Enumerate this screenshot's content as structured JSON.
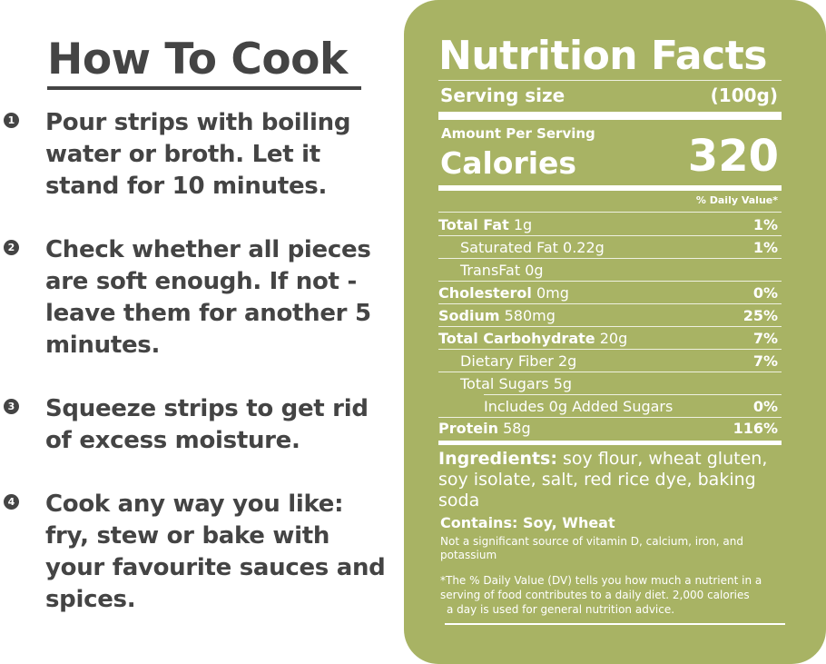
{
  "how_to_cook": {
    "title": "How To Cook",
    "steps": [
      {
        "number": "1",
        "text": "Pour strips with boiling water or broth. Let it stand for 10 minutes."
      },
      {
        "number": "2",
        "text": "Check whether all pieces are soft enough. If not - leave them for another 5 minutes."
      },
      {
        "number": "3",
        "text": "Squeeze strips to get rid of excess moisture."
      },
      {
        "number": "4",
        "text": "Cook any way you like: fry, stew or bake with your favourite sauces and spices."
      }
    ]
  },
  "nutrition": {
    "title": "Nutrition Facts",
    "serving_label": "Serving size",
    "serving_value": "(100g)",
    "amount_per_serving": "Amount Per Serving",
    "calories_label": "Calories",
    "calories_value": "320",
    "daily_value_header": "% Daily Value*",
    "rows": [
      {
        "name": "Total Fat",
        "amount": "1g",
        "dv": "1%"
      },
      {
        "name": "Saturated Fat",
        "amount": "0.22g",
        "dv": "1%"
      },
      {
        "name": "TransFat",
        "amount": "0g",
        "dv": ""
      },
      {
        "name": "Cholesterol",
        "amount": "0mg",
        "dv": "0%"
      },
      {
        "name": "Sodium",
        "amount": "580mg",
        "dv": "25%"
      },
      {
        "name": "Total Carbohydrate",
        "amount": "20g",
        "dv": "7%"
      },
      {
        "name": "Dietary Fiber",
        "amount": "2g",
        "dv": "7%"
      },
      {
        "name": "Total Sugars",
        "amount": "5g",
        "dv": ""
      },
      {
        "name": "Includes",
        "amount": "0g Added Sugars",
        "dv": "0%"
      },
      {
        "name": "Protein",
        "amount": "58g",
        "dv": "116%"
      }
    ],
    "ingredients_label": "Ingredients:",
    "ingredients_text": "soy flour, wheat gluten, soy isolate, salt, red rice dye, baking soda",
    "contains": "Contains: Soy, Wheat",
    "note": "Not a significant source of vitamin D, calcium, iron, and potassium",
    "footnote_line1": "*The % Daily Value (DV) tells you how much a nutrient in a serving of food contributes to a daily diet. 2,000 calories",
    "footnote_line2": "a day is used for general nutrition advice."
  },
  "colors": {
    "panel_background": "#a8b364",
    "text_dark": "#444444",
    "text_light": "#ffffff"
  }
}
